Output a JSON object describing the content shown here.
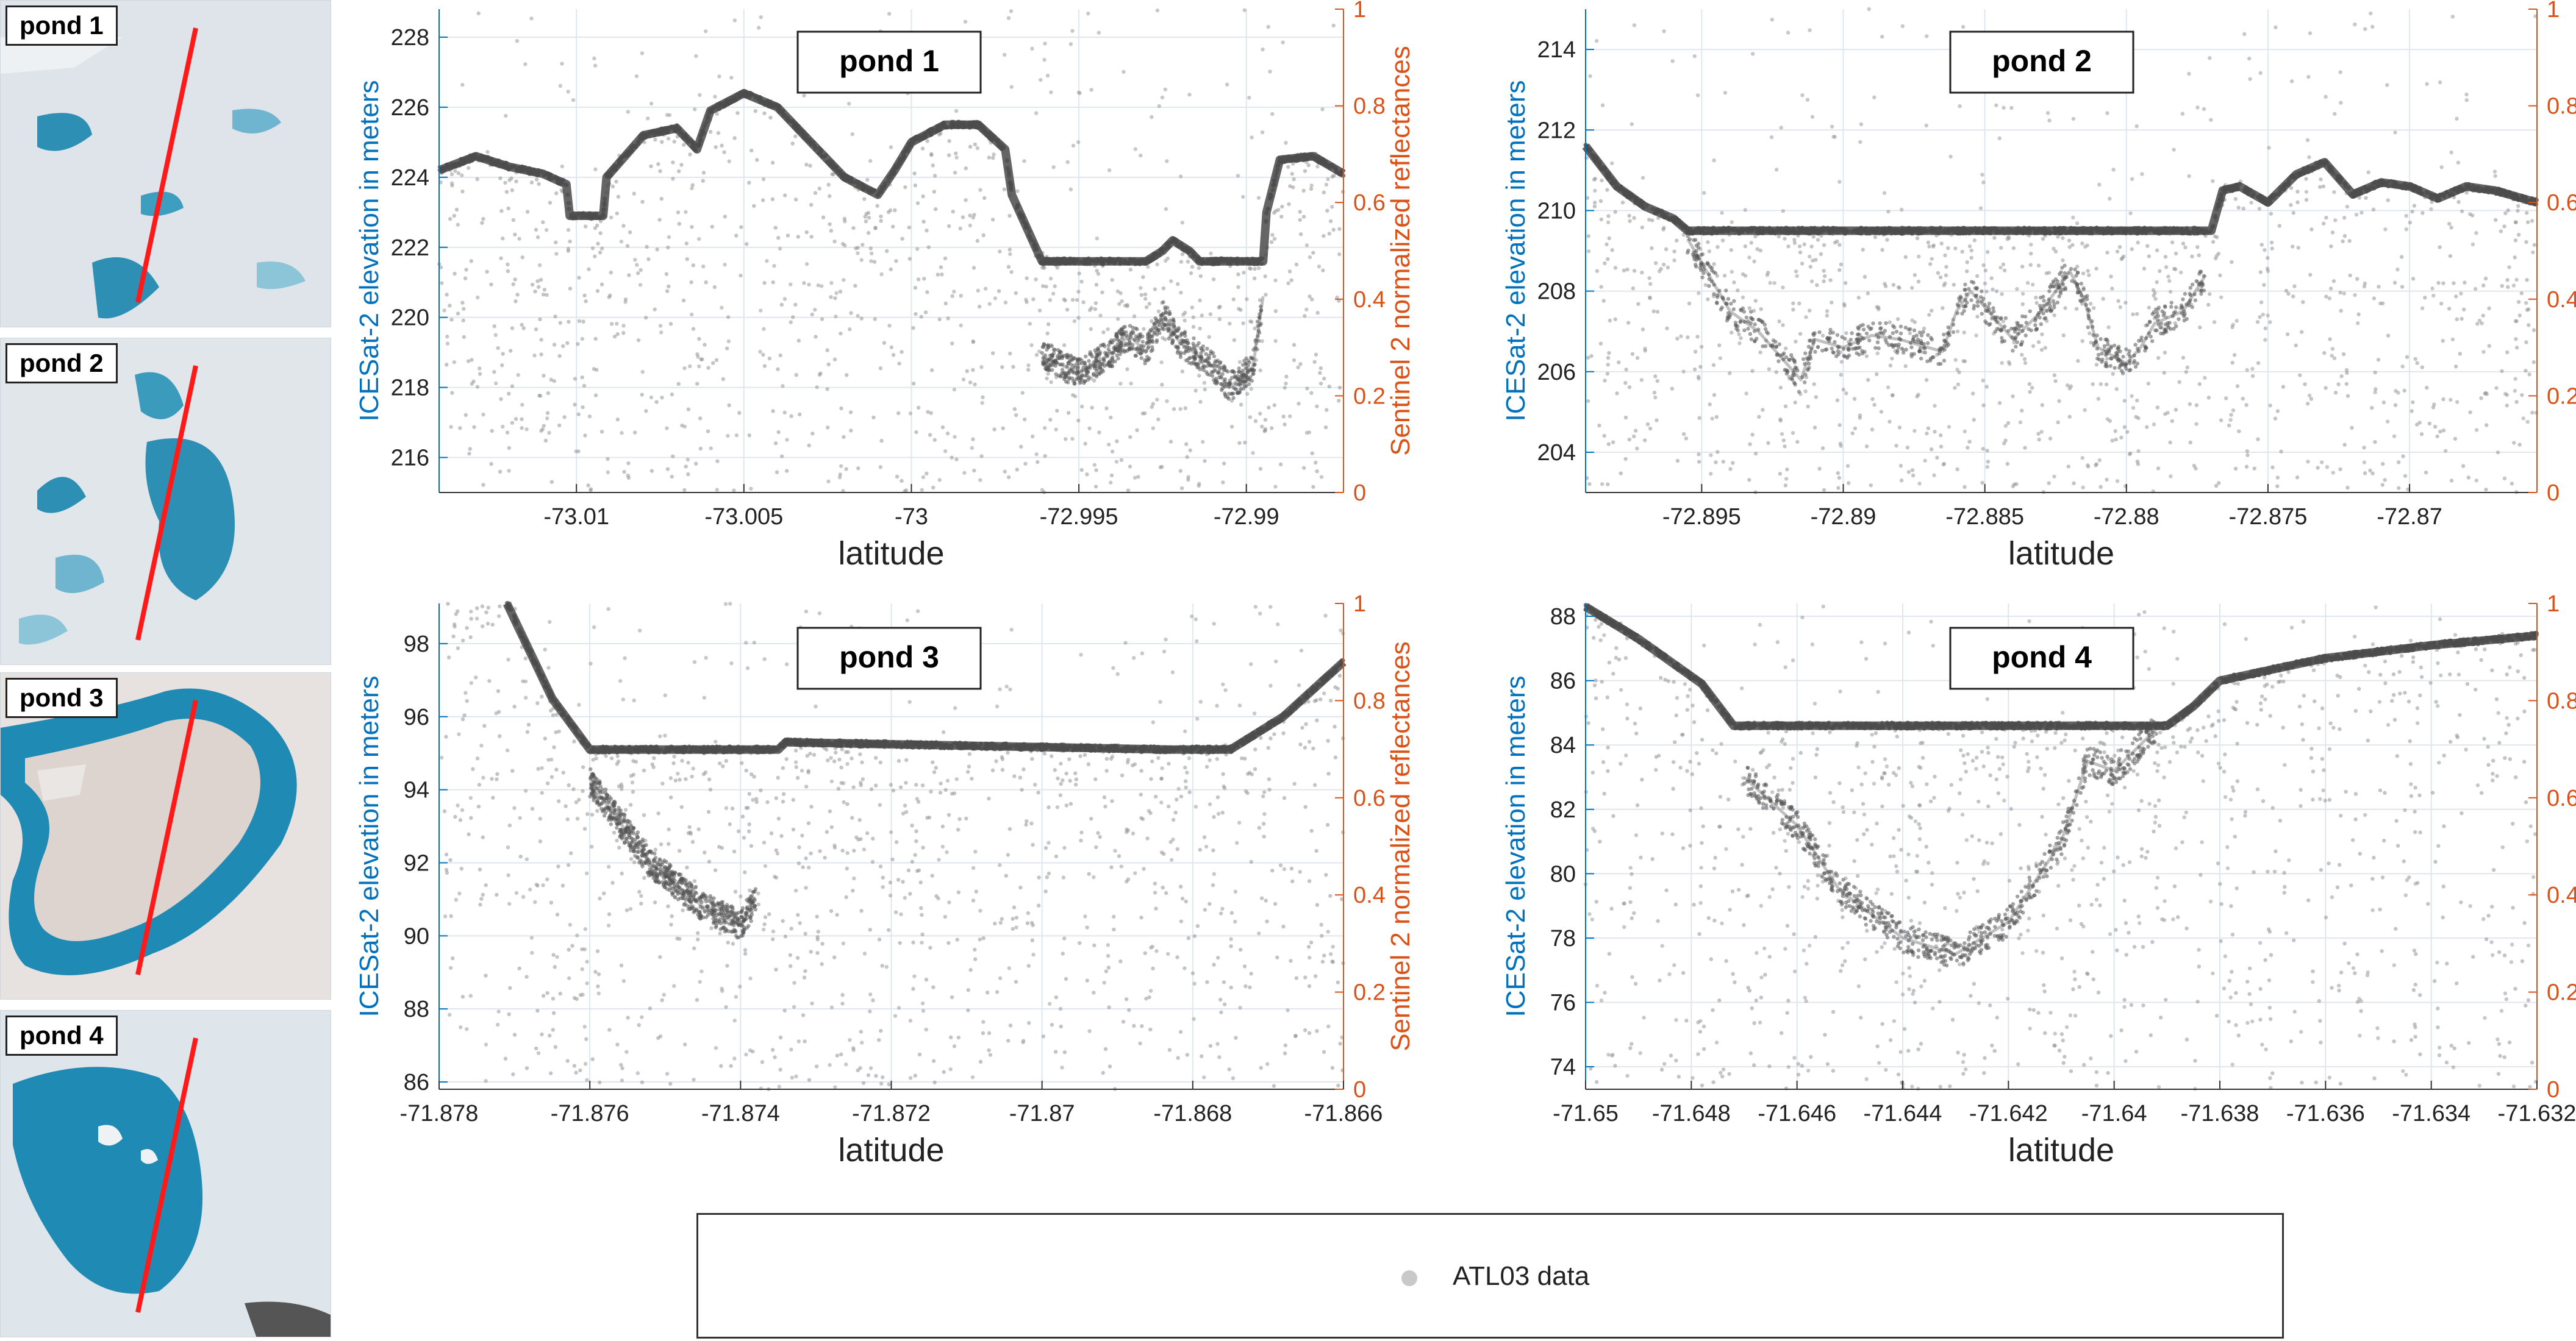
{
  "thumbnails": [
    {
      "label": "pond 1"
    },
    {
      "label": "pond 2"
    },
    {
      "label": "pond 3"
    },
    {
      "label": "pond 4"
    }
  ],
  "colors": {
    "left_axis": "#0072BD",
    "right_axis": "#D95319",
    "points": "#555555",
    "grid": "#dfe6ee",
    "track_line": "#ff1a1a",
    "water": "#2e8fb5"
  },
  "legend": {
    "label": "ATL03 data"
  },
  "chart_data": [
    {
      "type": "scatter",
      "title": "pond 1",
      "xlabel": "latitude",
      "ylabel": "ICESat-2 elevation in meters",
      "y2label": "Sentinel 2 normalized reflectances",
      "xlim": [
        -73.0141,
        -72.9871
      ],
      "ylim": [
        215,
        228.8
      ],
      "y2lim": [
        0,
        1
      ],
      "xticks": [
        -73.01,
        -73.005,
        -73.0,
        -72.995,
        -72.99
      ],
      "xticklabels": [
        "-73.01",
        "-73.005",
        "-73",
        "-72.995",
        "-72.99"
      ],
      "yticks": [
        216,
        218,
        220,
        222,
        224,
        226,
        228
      ],
      "y2ticks": [
        0,
        0.2,
        0.4,
        0.6,
        0.8,
        1
      ],
      "y2ticklabels": [
        "0",
        "0.2",
        "0.4",
        "0.6",
        "0.8",
        "1"
      ],
      "series": [
        {
          "name": "ATL03 data",
          "role": "surface",
          "x": [
            -73.0141,
            -73.013,
            -73.012,
            -73.011,
            -73.0103,
            -73.0102,
            -73.0092,
            -73.0091,
            -73.008,
            -73.007,
            -73.0064,
            -73.006,
            -73.005,
            -73.004,
            -73.003,
            -73.002,
            -73.001,
            -73.0005,
            -73.0,
            -72.999,
            -72.998,
            -72.9972,
            -72.997,
            -72.9962,
            -72.9961,
            -72.993,
            -72.9925,
            -72.9922,
            -72.9917,
            -72.9914,
            -72.9895,
            -72.9894,
            -72.989,
            -72.988,
            -72.9871
          ],
          "y": [
            224.2,
            224.6,
            224.3,
            224.1,
            223.8,
            222.9,
            222.9,
            224.0,
            225.2,
            225.4,
            224.8,
            225.9,
            226.4,
            226.0,
            225.0,
            224.0,
            223.5,
            224.2,
            225.0,
            225.5,
            225.5,
            224.8,
            223.5,
            221.8,
            221.6,
            221.6,
            221.9,
            222.2,
            221.9,
            221.6,
            221.6,
            223.0,
            224.5,
            224.6,
            224.1
          ]
        },
        {
          "name": "ATL03 data",
          "role": "lakebed",
          "x": [
            -72.9961,
            -72.995,
            -72.994,
            -72.9935,
            -72.993,
            -72.9925,
            -72.992,
            -72.991,
            -72.9905,
            -72.9898,
            -72.9895
          ],
          "y": [
            218.9,
            218.4,
            219.0,
            219.5,
            219.0,
            220.1,
            219.3,
            218.6,
            218.0,
            218.6,
            220.6
          ]
        }
      ]
    },
    {
      "type": "scatter",
      "title": "pond 2",
      "xlabel": "latitude",
      "ylabel": "ICESat-2 elevation in meters",
      "y2label": "Sentinel 2 normalized reflectances",
      "xlim": [
        -72.8991,
        -72.8655
      ],
      "ylim": [
        203,
        215
      ],
      "y2lim": [
        0,
        1
      ],
      "xticks": [
        -72.895,
        -72.89,
        -72.885,
        -72.88,
        -72.875,
        -72.87
      ],
      "xticklabels": [
        "-72.895",
        "-72.89",
        "-72.885",
        "-72.88",
        "-72.875",
        "-72.87"
      ],
      "yticks": [
        204,
        206,
        208,
        210,
        212,
        214
      ],
      "y2ticks": [
        0,
        0.2,
        0.4,
        0.6,
        0.8,
        1
      ],
      "y2ticklabels": [
        "0",
        "0.2",
        "0.4",
        "0.6",
        "0.8",
        "1"
      ],
      "series": [
        {
          "name": "ATL03 data",
          "role": "surface",
          "x": [
            -72.8991,
            -72.898,
            -72.897,
            -72.896,
            -72.8955,
            -72.877,
            -72.8766,
            -72.876,
            -72.875,
            -72.874,
            -72.873,
            -72.872,
            -72.871,
            -72.87,
            -72.869,
            -72.868,
            -72.867,
            -72.8655
          ],
          "y": [
            211.6,
            210.6,
            210.1,
            209.8,
            209.5,
            209.5,
            210.5,
            210.6,
            210.2,
            210.9,
            211.2,
            210.4,
            210.7,
            210.6,
            210.3,
            210.6,
            210.5,
            210.2
          ]
        },
        {
          "name": "ATL03 data",
          "role": "lakebed",
          "x": [
            -72.8955,
            -72.894,
            -72.893,
            -72.8915,
            -72.891,
            -72.89,
            -72.889,
            -72.888,
            -72.8865,
            -72.886,
            -72.8855,
            -72.884,
            -72.883,
            -72.882,
            -72.8815,
            -72.881,
            -72.88,
            -72.8795,
            -72.879,
            -72.878,
            -72.8772
          ],
          "y": [
            209.3,
            207.5,
            207.0,
            205.8,
            206.8,
            206.6,
            206.9,
            206.8,
            206.5,
            207.5,
            208.0,
            206.8,
            207.5,
            208.5,
            207.8,
            206.6,
            206.2,
            206.6,
            207.2,
            207.5,
            208.4
          ]
        }
      ]
    },
    {
      "type": "scatter",
      "title": "pond 3",
      "xlabel": "latitude",
      "ylabel": "ICESat-2 elevation in meters",
      "y2label": "Sentinel 2 normalized reflectances",
      "xlim": [
        -71.878,
        -71.866
      ],
      "ylim": [
        85.8,
        99.1
      ],
      "y2lim": [
        0,
        1
      ],
      "xticks": [
        -71.878,
        -71.876,
        -71.874,
        -71.872,
        -71.87,
        -71.868,
        -71.866
      ],
      "xticklabels": [
        "-71.878",
        "-71.876",
        "-71.874",
        "-71.872",
        "-71.87",
        "-71.868",
        "-71.866"
      ],
      "yticks": [
        86,
        88,
        90,
        92,
        94,
        96,
        98
      ],
      "y2ticks": [
        0,
        0.2,
        0.4,
        0.6,
        0.8,
        1
      ],
      "y2ticklabels": [
        "0",
        "0.2",
        "0.4",
        "0.6",
        "0.8",
        "1"
      ],
      "series": [
        {
          "name": "ATL03 data",
          "role": "surface",
          "x": [
            -71.8771,
            -71.8765,
            -71.876,
            -71.8735,
            -71.8734,
            -71.8683,
            -71.8675,
            -71.8668,
            -71.866
          ],
          "y": [
            99.1,
            96.5,
            95.1,
            95.1,
            95.3,
            95.1,
            95.1,
            96.0,
            97.5
          ]
        },
        {
          "name": "ATL03 data",
          "role": "lakebed",
          "x": [
            -71.876,
            -71.8752,
            -71.8745,
            -71.874,
            -71.8738
          ],
          "y": [
            94.2,
            92.0,
            90.8,
            90.3,
            91.0
          ]
        }
      ]
    },
    {
      "type": "scatter",
      "title": "pond 4",
      "xlabel": "latitude",
      "ylabel": "ICESat-2 elevation in meters",
      "y2label": "Sentinel 2 normalized reflectances",
      "xlim": [
        -71.65,
        -71.632
      ],
      "ylim": [
        73.3,
        88.4
      ],
      "y2lim": [
        0,
        1
      ],
      "xticks": [
        -71.65,
        -71.648,
        -71.646,
        -71.644,
        -71.642,
        -71.64,
        -71.638,
        -71.636,
        -71.634,
        -71.632
      ],
      "xticklabels": [
        "-71.65",
        "-71.648",
        "-71.646",
        "-71.644",
        "-71.642",
        "-71.64",
        "-71.638",
        "-71.636",
        "-71.634",
        "-71.632"
      ],
      "yticks": [
        74,
        76,
        78,
        80,
        82,
        84,
        86,
        88
      ],
      "y2ticks": [
        0,
        0.2,
        0.4,
        0.6,
        0.8,
        1
      ],
      "y2ticklabels": [
        "0",
        "0.2",
        "0.4",
        "0.6",
        "0.8",
        "1"
      ],
      "series": [
        {
          "name": "ATL03 data",
          "role": "surface",
          "x": [
            -71.65,
            -71.649,
            -71.6478,
            -71.6472,
            -71.639,
            -71.6385,
            -71.638,
            -71.636,
            -71.634,
            -71.632
          ],
          "y": [
            88.3,
            87.3,
            85.9,
            84.6,
            84.6,
            85.2,
            86.0,
            86.7,
            87.1,
            87.4
          ]
        },
        {
          "name": "ATL03 data",
          "role": "lakebed",
          "x": [
            -71.647,
            -71.646,
            -71.6452,
            -71.644,
            -71.643,
            -71.642,
            -71.641,
            -71.6405,
            -71.64,
            -71.6392
          ],
          "y": [
            83.0,
            81.5,
            79.5,
            78.0,
            77.5,
            78.5,
            81.0,
            83.5,
            83.2,
            84.5
          ]
        }
      ]
    }
  ]
}
